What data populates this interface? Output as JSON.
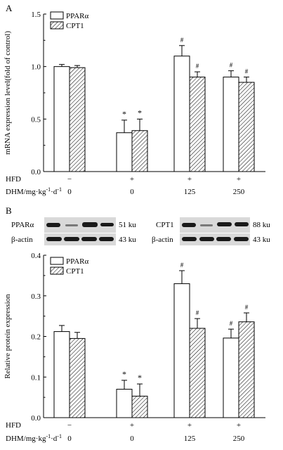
{
  "panel_a_label": "A",
  "panel_b_label": "B",
  "hfd_label": "HFD",
  "dose_label_main": "DHM/mg·kg",
  "dose_label_sup1": "-1",
  "dose_label_mid": "·d",
  "dose_label_sup2": "-1",
  "conditions": [
    {
      "hfd": "−",
      "dose": "0"
    },
    {
      "hfd": "+",
      "dose": "0"
    },
    {
      "hfd": "+",
      "dose": "125"
    },
    {
      "hfd": "+",
      "dose": "250"
    }
  ],
  "blots": {
    "left_top": {
      "label": "PPARα",
      "size": "51 ku"
    },
    "left_bottom": {
      "label": "β-actin",
      "size": "43 ku"
    },
    "right_top": {
      "label": "CPT1",
      "size": "88 ku"
    },
    "right_bottom": {
      "label": "β-actin",
      "size": "43 ku"
    }
  },
  "colors": {
    "bar_fill": "#ffffff",
    "stroke": "#000000",
    "blot_bg": "#d9d9d9",
    "band": "#1a1a1a"
  },
  "chart_data": [
    {
      "panel": "A",
      "type": "bar",
      "ylabel": "mRNA expression level(fold of control)",
      "ylim": [
        0,
        1.5
      ],
      "yticks": [
        0.0,
        0.5,
        1.0,
        1.5
      ],
      "legend_position": "top-left",
      "series": [
        {
          "name": "PPARα",
          "pattern": "open",
          "values": [
            1.0,
            0.37,
            1.1,
            0.9
          ],
          "errors": [
            0.02,
            0.12,
            0.1,
            0.06
          ],
          "marks": [
            "",
            "*",
            "#",
            "#"
          ]
        },
        {
          "name": "CPT1",
          "pattern": "hatched",
          "values": [
            0.99,
            0.39,
            0.9,
            0.85
          ],
          "errors": [
            0.02,
            0.11,
            0.05,
            0.05
          ],
          "marks": [
            "",
            "*",
            "#",
            "#"
          ]
        }
      ]
    },
    {
      "panel": "B",
      "type": "bar",
      "ylabel": "Relative protein expression",
      "ylim": [
        0,
        0.4
      ],
      "yticks": [
        0.0,
        0.1,
        0.2,
        0.3,
        0.4
      ],
      "legend_position": "top-left",
      "series": [
        {
          "name": "PPARα",
          "pattern": "open",
          "values": [
            0.212,
            0.07,
            0.33,
            0.196
          ],
          "errors": [
            0.015,
            0.022,
            0.032,
            0.022
          ],
          "marks": [
            "",
            "*",
            "#",
            "#"
          ]
        },
        {
          "name": "CPT1",
          "pattern": "hatched",
          "values": [
            0.195,
            0.053,
            0.22,
            0.236
          ],
          "errors": [
            0.015,
            0.03,
            0.024,
            0.022
          ],
          "marks": [
            "",
            "*",
            "#",
            "#"
          ]
        }
      ]
    }
  ]
}
